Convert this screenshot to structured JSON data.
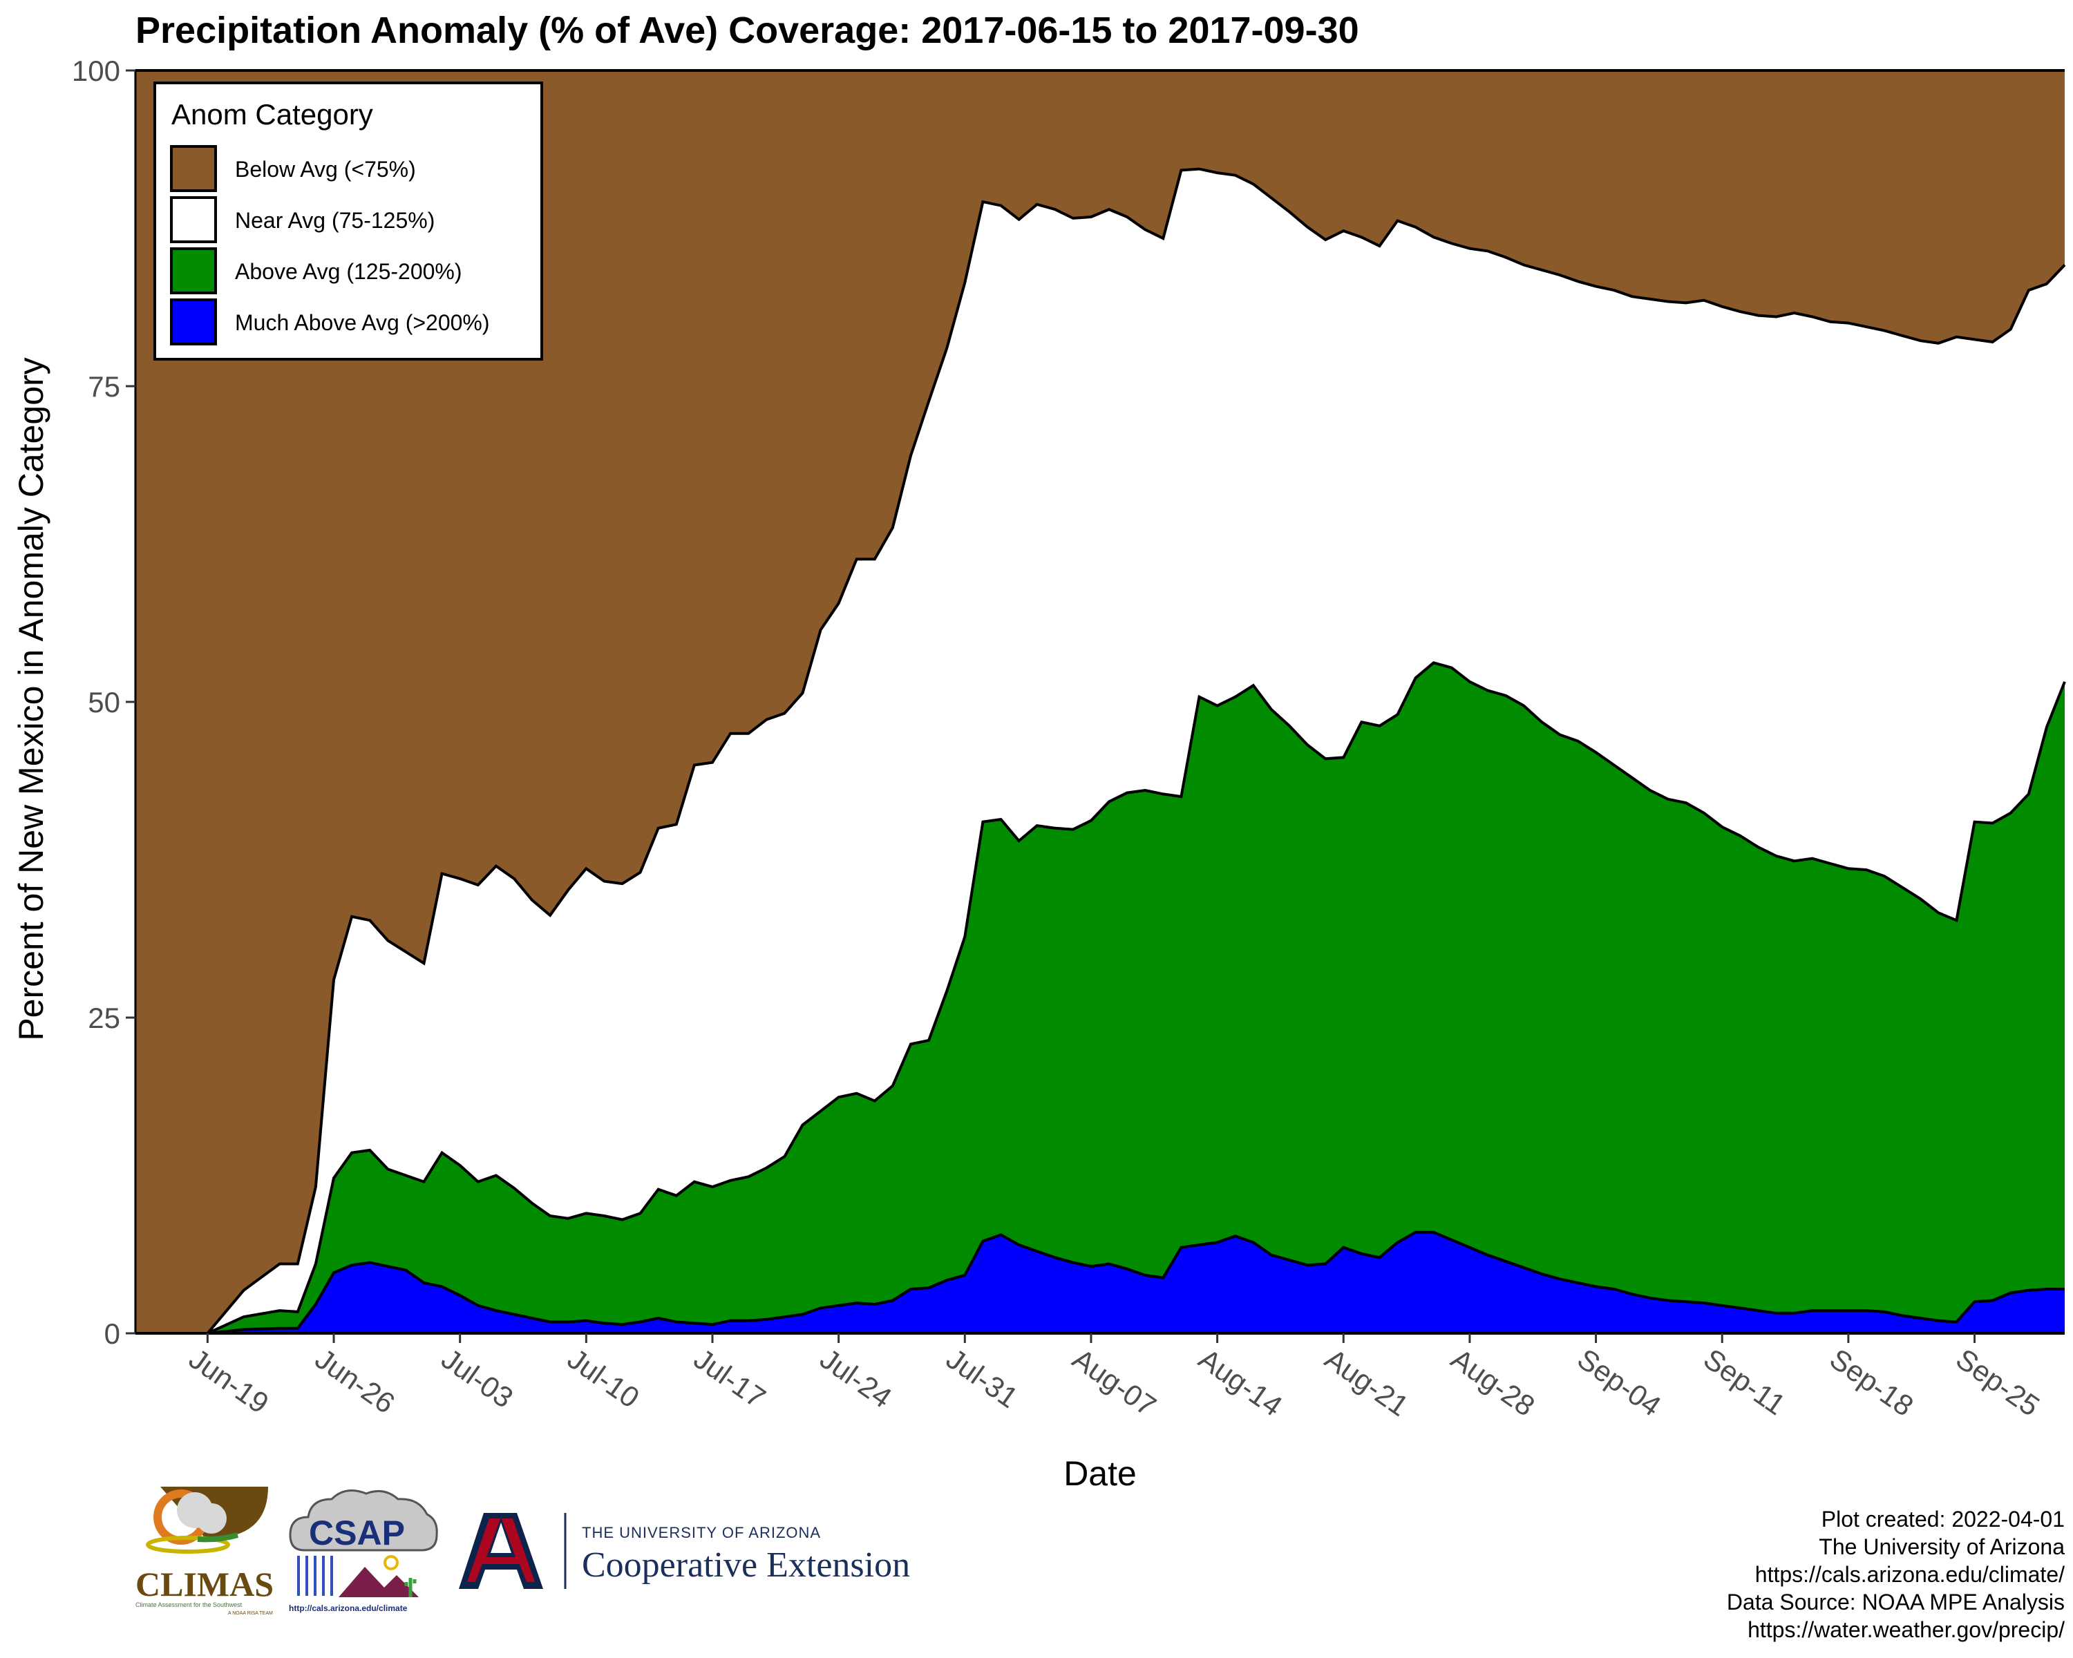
{
  "chart_data": {
    "type": "area",
    "stacked": true,
    "title": "Precipitation Anomaly (% of Ave) Coverage: 2017-06-15 to 2017-09-30",
    "xlabel": "Date",
    "ylabel": "Percent of New Mexico in Anomaly Category",
    "xlim": [
      "2017-06-15",
      "2017-09-30"
    ],
    "ylim": [
      0,
      100
    ],
    "y_ticks": [
      0,
      25,
      50,
      75,
      100
    ],
    "y_tick_labels": [
      "0",
      "25",
      "50",
      "75",
      "100"
    ],
    "x_tick_dates": [
      "2017-06-19",
      "2017-06-26",
      "2017-07-03",
      "2017-07-10",
      "2017-07-17",
      "2017-07-24",
      "2017-07-31",
      "2017-08-07",
      "2017-08-14",
      "2017-08-21",
      "2017-08-28",
      "2017-09-04",
      "2017-09-11",
      "2017-09-18",
      "2017-09-25"
    ],
    "x_tick_labels": [
      "Jun-19",
      "Jun-26",
      "Jul-03",
      "Jul-10",
      "Jul-17",
      "Jul-24",
      "Jul-31",
      "Aug-07",
      "Aug-14",
      "Aug-21",
      "Aug-28",
      "Sep-04",
      "Sep-11",
      "Sep-18",
      "Sep-25"
    ],
    "grid": false,
    "legend": {
      "title": "Anom Category",
      "position": "top-left",
      "entries": [
        "Below Avg (<75%)",
        "Near Avg (75-125%)",
        "Above Avg (125-200%)",
        "Much Above Avg (>200%)"
      ]
    },
    "colors": {
      "below": "#8b5a2b",
      "near": "#ffffff",
      "above": "#008b00",
      "much_above": "#0000ff"
    },
    "cumulative_boundaries": {
      "description_note": "",
      "x": [
        "2017-06-15",
        "2017-06-17",
        "2017-06-19",
        "2017-06-21",
        "2017-06-23",
        "2017-06-24",
        "2017-06-25",
        "2017-06-26",
        "2017-06-27",
        "2017-06-28",
        "2017-06-29",
        "2017-06-30",
        "2017-07-01",
        "2017-07-02",
        "2017-07-03",
        "2017-07-04",
        "2017-07-05",
        "2017-07-06",
        "2017-07-07",
        "2017-07-08",
        "2017-07-09",
        "2017-07-10",
        "2017-07-11",
        "2017-07-12",
        "2017-07-13",
        "2017-07-14",
        "2017-07-15",
        "2017-07-16",
        "2017-07-17",
        "2017-07-18",
        "2017-07-19",
        "2017-07-20",
        "2017-07-21",
        "2017-07-22",
        "2017-07-23",
        "2017-07-24",
        "2017-07-25",
        "2017-07-26",
        "2017-07-27",
        "2017-07-28",
        "2017-07-29",
        "2017-07-30",
        "2017-07-31",
        "2017-08-01",
        "2017-08-02",
        "2017-08-03",
        "2017-08-04",
        "2017-08-05",
        "2017-08-06",
        "2017-08-07",
        "2017-08-08",
        "2017-08-09",
        "2017-08-10",
        "2017-08-11",
        "2017-08-12",
        "2017-08-13",
        "2017-08-14",
        "2017-08-15",
        "2017-08-16",
        "2017-08-17",
        "2017-08-18",
        "2017-08-19",
        "2017-08-20",
        "2017-08-21",
        "2017-08-22",
        "2017-08-23",
        "2017-08-24",
        "2017-08-25",
        "2017-08-26",
        "2017-08-27",
        "2017-08-28",
        "2017-08-29",
        "2017-08-30",
        "2017-08-31",
        "2017-09-01",
        "2017-09-02",
        "2017-09-03",
        "2017-09-04",
        "2017-09-05",
        "2017-09-06",
        "2017-09-07",
        "2017-09-08",
        "2017-09-09",
        "2017-09-10",
        "2017-09-11",
        "2017-09-12",
        "2017-09-13",
        "2017-09-14",
        "2017-09-15",
        "2017-09-16",
        "2017-09-17",
        "2017-09-18",
        "2017-09-19",
        "2017-09-20",
        "2017-09-21",
        "2017-09-22",
        "2017-09-23",
        "2017-09-24",
        "2017-09-25",
        "2017-09-26",
        "2017-09-27",
        "2017-09-28",
        "2017-09-29",
        "2017-09-30"
      ],
      "much_above_top": [
        0,
        0,
        0,
        0.3,
        0.4,
        0.4,
        2.3,
        4.8,
        5.4,
        5.6,
        5.3,
        5.0,
        4.0,
        3.7,
        3.0,
        2.2,
        1.8,
        1.5,
        1.2,
        0.9,
        0.9,
        1.0,
        0.8,
        0.7,
        0.9,
        1.2,
        0.9,
        0.8,
        0.7,
        1.0,
        1.0,
        1.1,
        1.3,
        1.5,
        2.0,
        2.2,
        2.4,
        2.3,
        2.6,
        3.5,
        3.6,
        4.2,
        4.6,
        7.3,
        7.8,
        7.0,
        6.5,
        6.0,
        5.6,
        5.3,
        5.5,
        5.1,
        4.6,
        4.4,
        6.8,
        7.0,
        7.2,
        7.7,
        7.2,
        6.2,
        5.8,
        5.4,
        5.5,
        6.8,
        6.3,
        6.0,
        7.2,
        8.0,
        8.0,
        7.4,
        6.8,
        6.2,
        5.7,
        5.2,
        4.7,
        4.3,
        4.0,
        3.7,
        3.5,
        3.1,
        2.8,
        2.6,
        2.5,
        2.4,
        2.2,
        2.0,
        1.8,
        1.6,
        1.6,
        1.8,
        1.8,
        1.8,
        1.8,
        1.7,
        1.4,
        1.2,
        1.0,
        0.9,
        2.5,
        2.6,
        3.2,
        3.4,
        3.5,
        3.5
      ],
      "above_top": [
        0,
        0,
        0,
        1.3,
        1.8,
        1.7,
        5.5,
        12.3,
        14.3,
        14.5,
        13.0,
        12.5,
        12.0,
        14.3,
        13.3,
        12.0,
        12.5,
        11.5,
        10.3,
        9.3,
        9.1,
        9.5,
        9.3,
        9.0,
        9.5,
        11.4,
        10.9,
        12.0,
        11.6,
        12.1,
        12.4,
        13.1,
        14.0,
        16.5,
        17.6,
        18.7,
        19.0,
        18.4,
        19.6,
        22.9,
        23.2,
        27.1,
        31.4,
        40.5,
        40.7,
        39.0,
        40.2,
        40.0,
        39.9,
        40.6,
        42.1,
        42.8,
        43.0,
        42.7,
        42.5,
        50.4,
        49.7,
        50.4,
        51.3,
        49.4,
        48.1,
        46.6,
        45.5,
        45.6,
        48.4,
        48.1,
        49.0,
        51.9,
        53.1,
        52.7,
        51.6,
        50.9,
        50.5,
        49.7,
        48.4,
        47.4,
        46.9,
        46.0,
        45.0,
        44.0,
        43.0,
        42.3,
        42.0,
        41.2,
        40.1,
        39.4,
        38.5,
        37.8,
        37.4,
        37.6,
        37.2,
        36.8,
        36.7,
        36.2,
        35.3,
        34.4,
        33.3,
        32.7,
        40.5,
        40.4,
        41.2,
        42.7,
        48.0,
        51.6
      ],
      "near_top": [
        0,
        0,
        0,
        3.4,
        5.5,
        5.5,
        11.6,
        28.0,
        33.0,
        32.7,
        31.1,
        30.2,
        29.3,
        36.4,
        36.0,
        35.5,
        37.0,
        36.0,
        34.3,
        33.1,
        35.1,
        36.8,
        35.8,
        35.6,
        36.5,
        40.0,
        40.3,
        45.0,
        45.2,
        47.5,
        47.5,
        48.6,
        49.1,
        50.7,
        55.7,
        57.8,
        61.3,
        61.3,
        63.8,
        69.5,
        73.8,
        78.0,
        83.2,
        89.6,
        89.3,
        88.2,
        89.4,
        89.0,
        88.3,
        88.4,
        89.0,
        88.4,
        87.4,
        86.7,
        92.1,
        92.2,
        91.9,
        91.7,
        91.0,
        89.9,
        88.8,
        87.6,
        86.6,
        87.3,
        86.8,
        86.1,
        88.1,
        87.6,
        86.8,
        86.3,
        85.9,
        85.7,
        85.2,
        84.6,
        84.2,
        83.8,
        83.3,
        82.9,
        82.6,
        82.1,
        81.9,
        81.7,
        81.6,
        81.8,
        81.3,
        80.9,
        80.6,
        80.5,
        80.8,
        80.5,
        80.1,
        80.0,
        79.7,
        79.4,
        79.0,
        78.6,
        78.4,
        78.9,
        78.7,
        78.5,
        79.5,
        82.6,
        83.1,
        84.6
      ],
      "below_top": 100
    }
  },
  "footer": {
    "credits": [
      "Plot created: 2022-04-01",
      "The University of Arizona",
      "https://cals.arizona.edu/climate/",
      "Data Source: NOAA MPE Analysis",
      "https://water.weather.gov/precip/"
    ],
    "logos": {
      "climas_name": "CLIMAS",
      "climas_tagline": "Climate Assessment for the Southwest",
      "climas_subtag": "A NOAA RISA TEAM",
      "csap_name": "CSAP",
      "csap_url": "http://cals.arizona.edu/climate",
      "ua_line1": "THE UNIVERSITY OF ARIZONA",
      "ua_line2": "Cooperative Extension",
      "ua_letter": "A"
    }
  }
}
